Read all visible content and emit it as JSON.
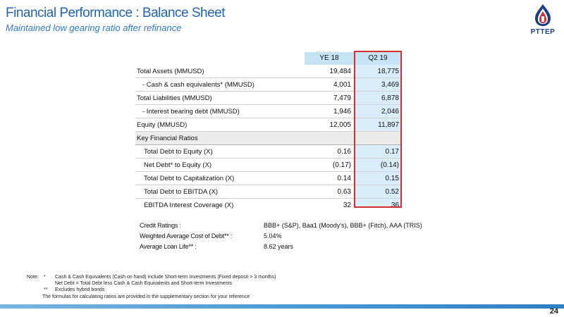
{
  "header": {
    "title": "Financial Performance : Balance Sheet",
    "subtitle": "Maintained low gearing ratio after refinance",
    "logo_text": "PTTEP"
  },
  "table": {
    "columns": [
      "YE 18",
      "Q2 19"
    ],
    "rows": [
      {
        "label": "Total Assets (MMUSD)",
        "ye18": "19,484",
        "q219": "18,775"
      },
      {
        "label": "- Cash & cash equivalents* (MMUSD)",
        "ye18": "4,001",
        "q219": "3,469"
      },
      {
        "label": "Total Liabilities (MMUSD)",
        "ye18": "7,479",
        "q219": "6,878"
      },
      {
        "label": "-  Interest bearing debt (MMUSD)",
        "ye18": "1,946",
        "q219": "2,046"
      },
      {
        "label": "Equity (MMUSD)",
        "ye18": "12,005",
        "q219": "11,897"
      }
    ],
    "section_title": "Key Financial Ratios",
    "ratios": [
      {
        "label": "Total Debt to Equity (X)",
        "ye18": "0.16",
        "q219": "0.17"
      },
      {
        "label": "Net Debt* to Equity (X)",
        "ye18": "(0.17)",
        "q219": "(0.14)"
      },
      {
        "label": "Total Debt to Capitalization (X)",
        "ye18": "0.14",
        "q219": "0.15"
      },
      {
        "label": "Total Debt to EBITDA (X)",
        "ye18": "0.63",
        "q219": "0.52"
      },
      {
        "label": "EBITDA Interest Coverage (X)",
        "ye18": "32",
        "q219": "36"
      }
    ]
  },
  "info": [
    {
      "key": "Credit Ratings :",
      "value": "BBB+ (S&P), Baa1 (Moody's),  BBB+ (Fitch), AAA (TRIS)"
    },
    {
      "key": "Weighted Average Cost of Debt** :",
      "value": "5.04%"
    },
    {
      "key": "Average Loan Life** :",
      "value": "8.62 years"
    }
  ],
  "notes": {
    "prefix": "Note:",
    "lines": [
      {
        "mark": "*",
        "text": "Cash & Cash Equivalents (Cash on hand) include Short-term Investments (Fixed deposit > 3 months)"
      },
      {
        "mark": "",
        "text": "Net Debt = Total Debt less Cash & Cash Equivalents and Short-term Investments"
      },
      {
        "mark": "**",
        "text": "Excludes hybrid bonds"
      }
    ],
    "footer_text": "The formulas for calculating ratios are provided in the supplementary section for your reference"
  },
  "page": {
    "number": "24"
  },
  "colors": {
    "title": "#1f63b5",
    "header_fill": "#c5e3f5",
    "highlight_border": "#d62e2e"
  }
}
